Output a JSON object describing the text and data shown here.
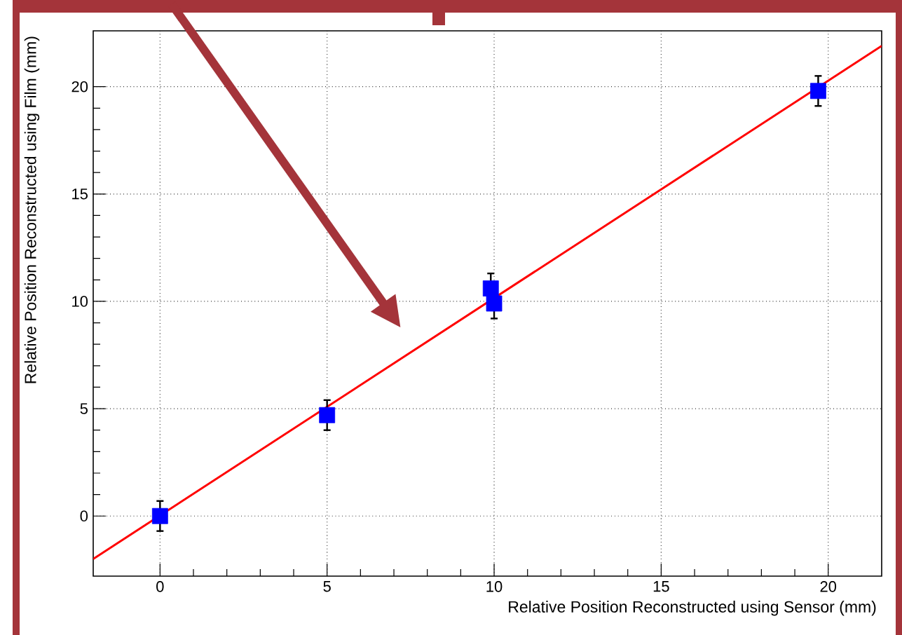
{
  "chart_data": {
    "type": "scatter",
    "xlabel": "Relative Position Reconstructed using Sensor (mm)",
    "ylabel": "Relative Position Reconstructed using Film (mm)",
    "xlim": [
      -2,
      21.6
    ],
    "ylim": [
      -2.8,
      22.6
    ],
    "xticks": [
      0,
      5,
      10,
      15,
      20
    ],
    "yticks": [
      0,
      5,
      10,
      15,
      20
    ],
    "grid": true,
    "marker": "square",
    "series": [
      {
        "color": "#0000ff",
        "x": [
          0,
          5,
          9.9,
          10,
          19.7
        ],
        "values": [
          0,
          4.7,
          10.6,
          9.9,
          19.8
        ],
        "errors": [
          0.7,
          0.7,
          0.7,
          0.7,
          0.7
        ]
      },
      {
        "type": "line",
        "marker": "none",
        "color": "#ff0000",
        "x": [
          -2,
          21.6
        ],
        "values": [
          -2,
          21.9
        ]
      }
    ]
  }
}
